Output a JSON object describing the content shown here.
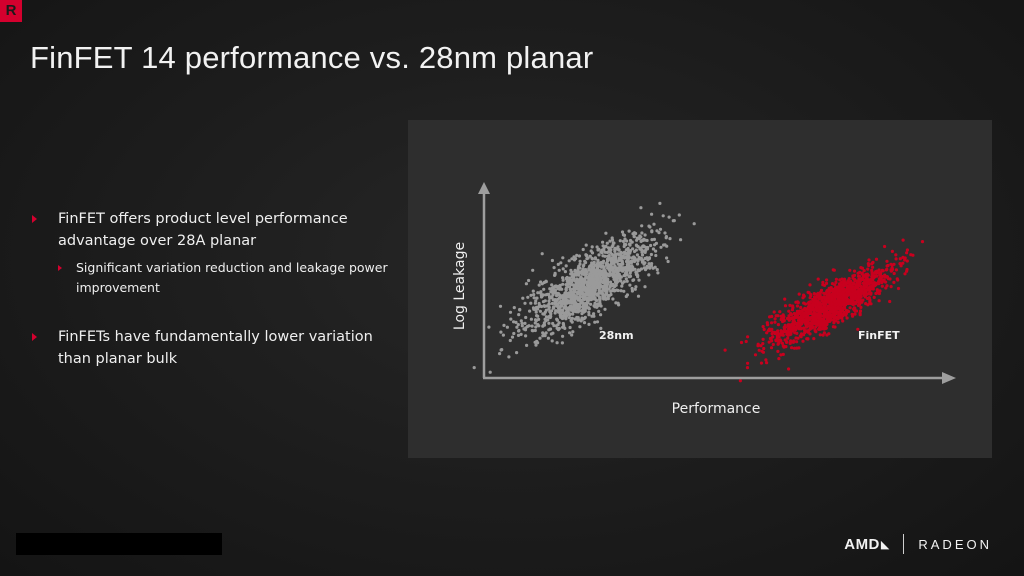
{
  "brand": {
    "badge_letter": "R",
    "accent_color": "#d4002e",
    "footer_amd": "AMD",
    "footer_arrow": "◣",
    "footer_radeon": "RADEON"
  },
  "slide": {
    "title": "FinFET 14 performance vs. 28nm planar"
  },
  "bullets": [
    {
      "text": "FinFET offers product level performance advantage over 28A planar",
      "sub": [
        "Significant variation reduction and leakage power improvement"
      ]
    },
    {
      "text": "FinFETs have fundamentally lower variation than planar bulk",
      "sub": []
    }
  ],
  "chart_data": {
    "type": "scatter",
    "xlabel": "Performance",
    "ylabel": "Log Leakage",
    "series": [
      {
        "name": "28nm",
        "color": "#9a9a9a"
      },
      {
        "name": "FinFET",
        "color": "#c8001e"
      }
    ]
  }
}
